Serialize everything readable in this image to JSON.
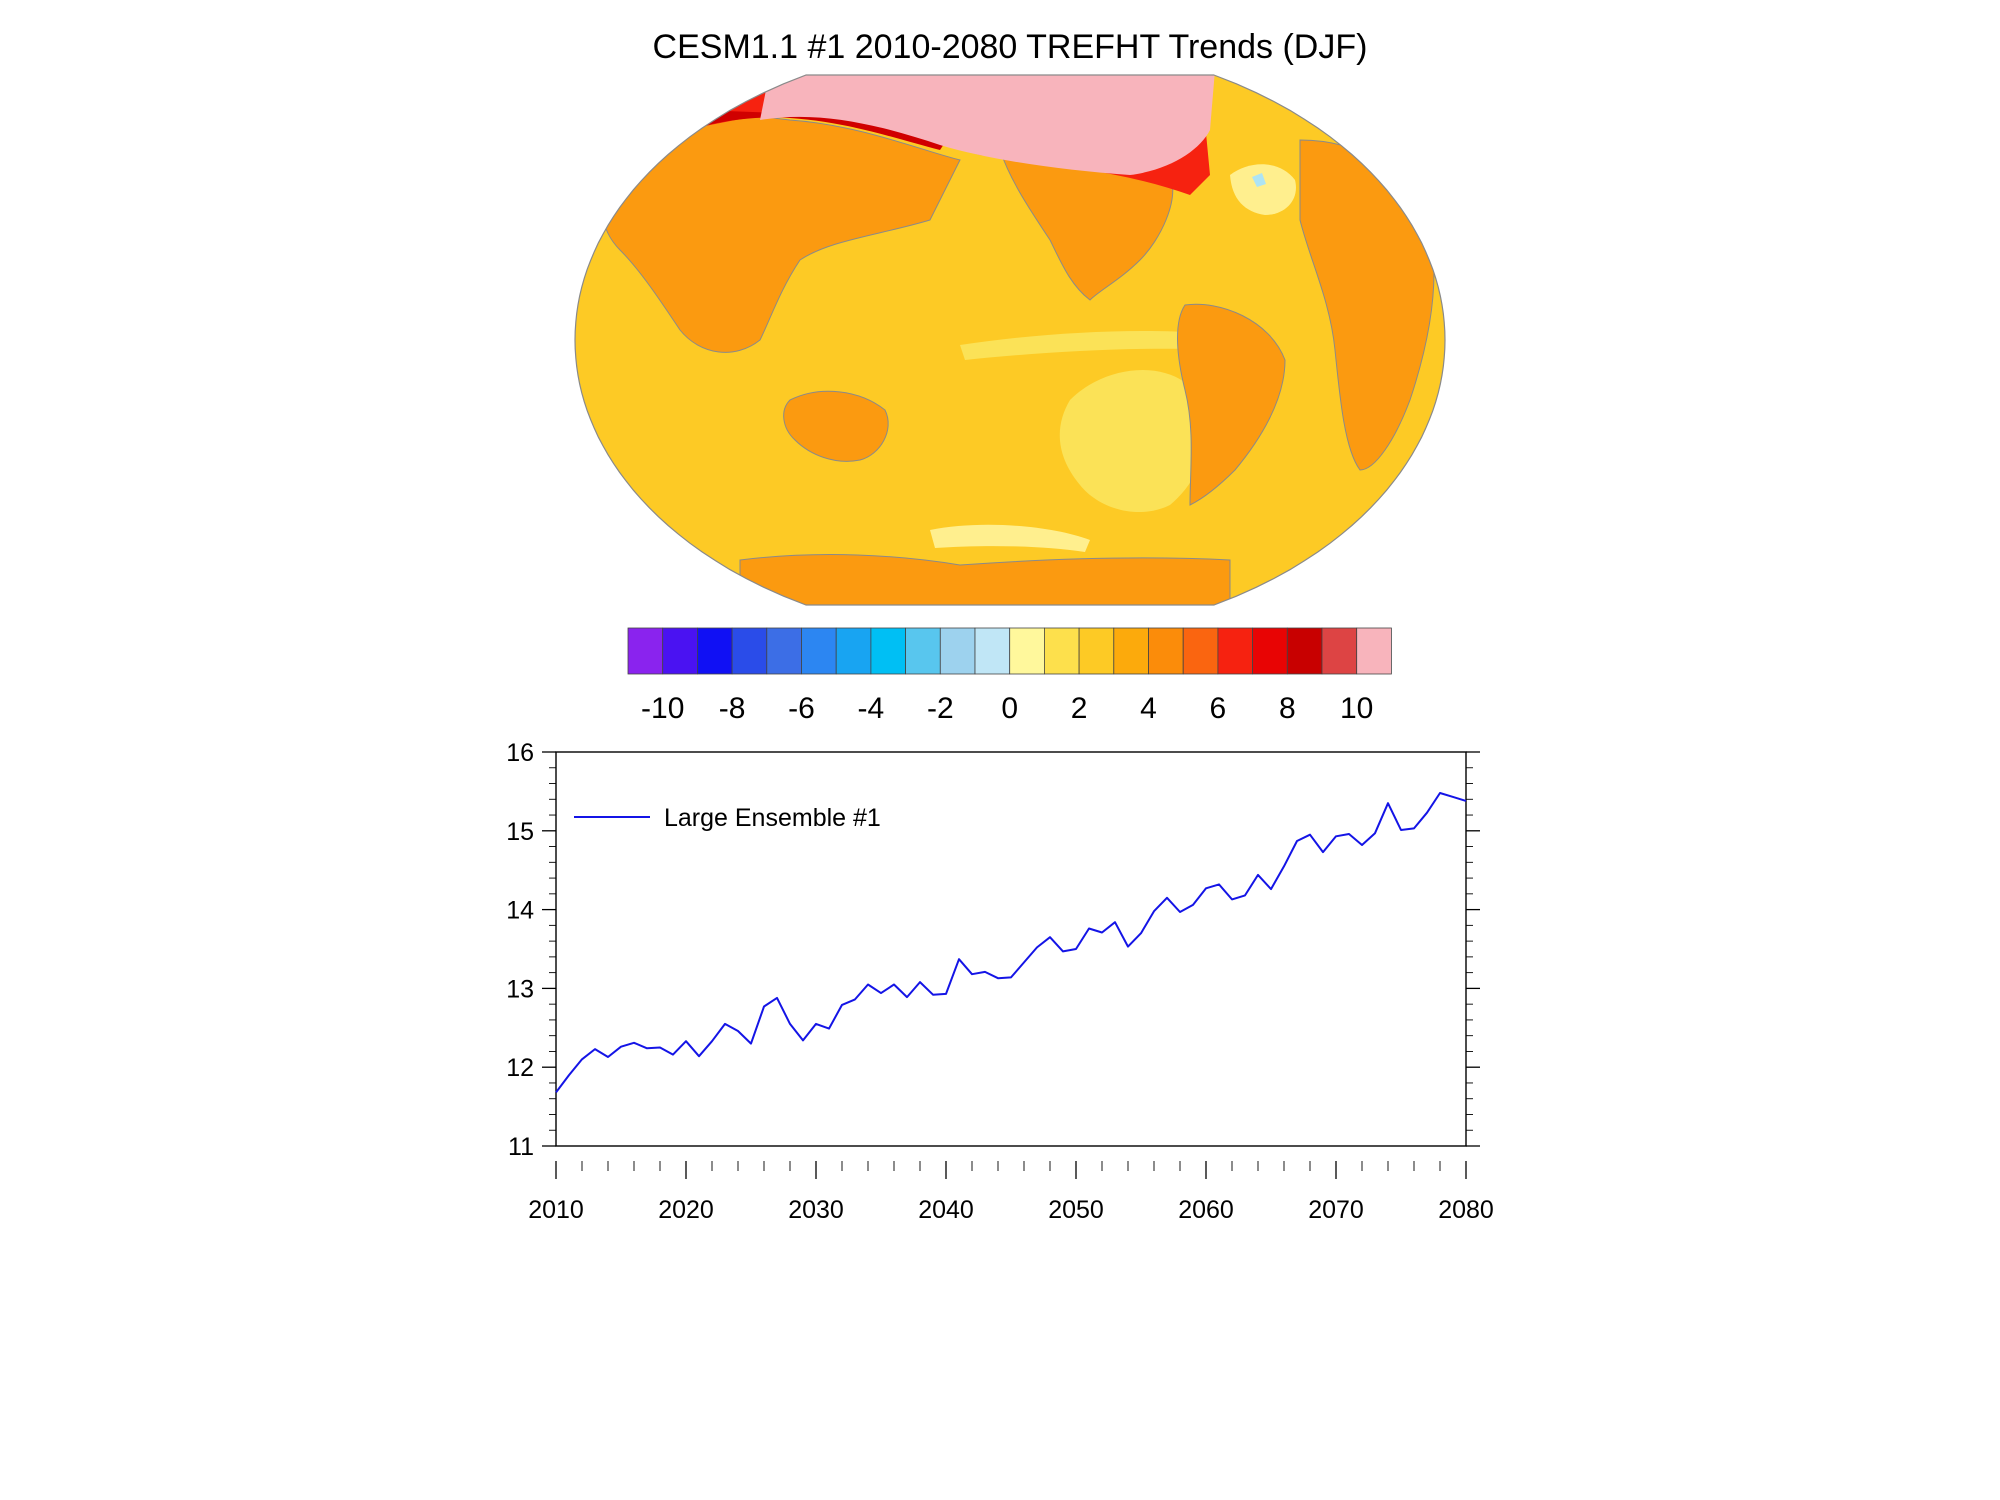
{
  "title": "CESM1.1 #1 2010-2080 TREFHT Trends (DJF)",
  "colors": {
    "ocean_base": "#fdca25",
    "warm_1": "#fbe257",
    "warm_2": "#ffef8e",
    "land_orange": "#fb9a10",
    "land_dark_orange": "#fa7010",
    "red": "#f62210",
    "dark_red": "#d00000",
    "pink": "#f8b4bc",
    "light_blue": "#aee4f4",
    "coast": "#8a8a8a",
    "line": "#1414e6"
  },
  "colorbar": {
    "colors": [
      "#8a23ee",
      "#4a12f2",
      "#1010f4",
      "#2a4ce9",
      "#3c6ee6",
      "#2c86f2",
      "#18a4f2",
      "#00bff4",
      "#58c6ee",
      "#9dd2ee",
      "#c0e6f6",
      "#fff89c",
      "#fde04c",
      "#fdca25",
      "#fcaa0c",
      "#fb8c0a",
      "#fa6510",
      "#f62210",
      "#e80404",
      "#c80000",
      "#dd4444",
      "#f8b4bc"
    ],
    "labels": [
      "-10",
      "-8",
      "-6",
      "-4",
      "-2",
      "0",
      "2",
      "4",
      "6",
      "8",
      "10"
    ]
  },
  "chart_data": {
    "type": "line",
    "title": "",
    "xlabel": "",
    "ylabel": "",
    "xlim": [
      2010,
      2080
    ],
    "ylim": [
      11,
      16
    ],
    "x_ticks": [
      "2010",
      "2020",
      "2030",
      "2040",
      "2050",
      "2060",
      "2070",
      "2080"
    ],
    "y_ticks": [
      "11",
      "12",
      "13",
      "14",
      "15",
      "16"
    ],
    "legend": {
      "position": "top-left",
      "entries": [
        "Large Ensemble #1"
      ]
    },
    "series": [
      {
        "name": "Large Ensemble #1",
        "x": [
          2010,
          2011,
          2012,
          2013,
          2014,
          2015,
          2016,
          2017,
          2018,
          2019,
          2020,
          2021,
          2022,
          2023,
          2024,
          2025,
          2026,
          2027,
          2028,
          2029,
          2030,
          2031,
          2032,
          2033,
          2034,
          2035,
          2036,
          2037,
          2038,
          2039,
          2040,
          2041,
          2042,
          2043,
          2044,
          2045,
          2046,
          2047,
          2048,
          2049,
          2050,
          2051,
          2052,
          2053,
          2054,
          2055,
          2056,
          2057,
          2058,
          2059,
          2060,
          2061,
          2062,
          2063,
          2064,
          2065,
          2066,
          2067,
          2068,
          2069,
          2070,
          2071,
          2072,
          2073,
          2074,
          2075,
          2076,
          2077,
          2078,
          2079,
          2080
        ],
        "values": [
          11.68,
          11.9,
          12.1,
          12.23,
          12.13,
          12.26,
          12.31,
          12.24,
          12.25,
          12.16,
          12.33,
          12.14,
          12.33,
          12.55,
          12.46,
          12.3,
          12.77,
          12.88,
          12.55,
          12.34,
          12.55,
          12.49,
          12.79,
          12.86,
          13.05,
          12.94,
          13.05,
          12.89,
          13.08,
          12.92,
          12.93,
          13.37,
          13.18,
          13.21,
          13.13,
          13.14,
          13.33,
          13.52,
          13.65,
          13.47,
          13.5,
          13.76,
          13.71,
          13.84,
          13.53,
          13.7,
          13.98,
          14.15,
          13.97,
          14.06,
          14.27,
          14.32,
          14.13,
          14.18,
          14.44,
          14.26,
          14.55,
          14.87,
          14.95,
          14.73,
          14.93,
          14.96,
          14.82,
          14.97,
          15.35,
          15.01,
          15.03,
          15.23,
          15.48,
          15.43,
          15.38
        ]
      }
    ]
  }
}
